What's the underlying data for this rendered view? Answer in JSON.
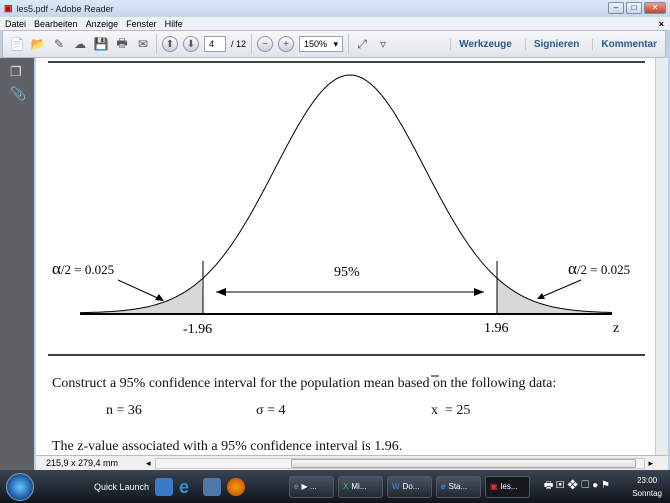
{
  "window": {
    "title": "les5.pdf - Adobe Reader"
  },
  "menu": [
    "Datei",
    "Bearbeiten",
    "Anzeige",
    "Fenster",
    "Hilfe"
  ],
  "toolbar": {
    "page_current": "4",
    "page_total": "/ 12",
    "zoom": "150%",
    "links": [
      "Werkzeuge",
      "Signieren",
      "Kommentar"
    ]
  },
  "figure": {
    "left_alpha": "α/2 = 0.025",
    "right_alpha": "α/2 = 0.025",
    "center": "95%",
    "left_z": "-1.96",
    "right_z": "1.96",
    "axis": "z",
    "alpha_symbol": "α",
    "alpha_rest": "/2 = 0.025"
  },
  "text": {
    "instruction": "Construct a 95% confidence interval for the population mean based on the following data:",
    "n": "n = 36",
    "sigma": "σ = 4",
    "xbar_sym": "x",
    "xbar_val": "= 25",
    "zvalue": "The z-value associated with a 95% confidence interval is 1.96."
  },
  "status": {
    "dimensions": "215,9 x 279,4 mm"
  },
  "taskbar": {
    "quick_launch": "Quick Launch",
    "tasks": [
      "▶ ...",
      "Mi...",
      "Do...",
      "Sta...",
      "les..."
    ],
    "time": "23:00",
    "day": "Sonntag"
  }
}
